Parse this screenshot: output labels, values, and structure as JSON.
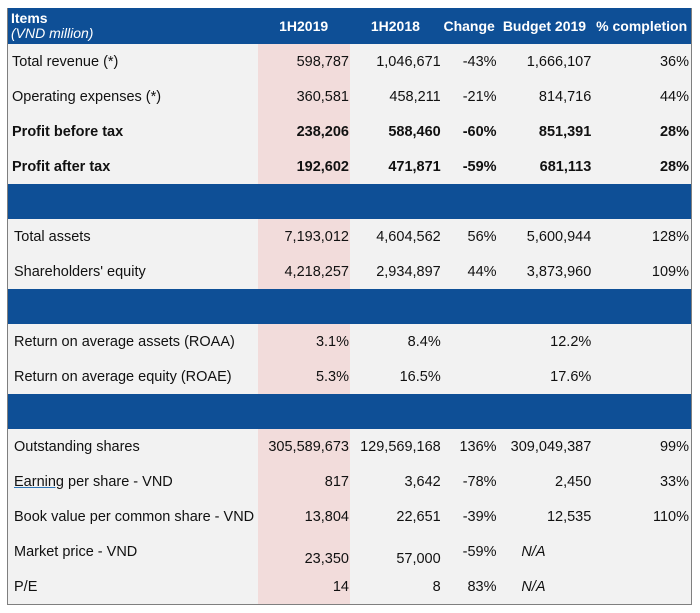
{
  "header": {
    "items_label": "Items",
    "unit_label": "(VND million)",
    "columns": [
      "1H2019",
      "1H2018",
      "Change",
      "Budget 2019",
      "% completion"
    ]
  },
  "colors": {
    "header_blue": "#0e4f96",
    "highlight_pink": "#f2dcdb",
    "row_grey": "#f2f2f2"
  },
  "sections": [
    {
      "rows": [
        {
          "label": "Total revenue (*)",
          "values": [
            "598,787",
            "1,046,671",
            "-43%",
            "1,666,107",
            "36%"
          ]
        },
        {
          "label": "Operating expenses (*)",
          "values": [
            "360,581",
            "458,211",
            "-21%",
            "814,716",
            "44%"
          ]
        },
        {
          "label": "Profit before tax",
          "bold": true,
          "values": [
            "238,206",
            "588,460",
            "-60%",
            "851,391",
            "28%"
          ]
        },
        {
          "label": "Profit after tax",
          "bold": true,
          "values": [
            "192,602",
            "471,871",
            "-59%",
            "681,113",
            "28%"
          ]
        }
      ]
    },
    {
      "rows": [
        {
          "label": "Total assets",
          "values": [
            "7,193,012",
            "4,604,562",
            "56%",
            "5,600,944",
            "128%"
          ]
        },
        {
          "label": "Shareholders' equity",
          "values": [
            "4,218,257",
            "2,934,897",
            "44%",
            "3,873,960",
            "109%"
          ]
        }
      ]
    },
    {
      "rows": [
        {
          "label": "Return on average assets (ROAA)",
          "values": [
            "3.1%",
            "8.4%",
            "",
            "12.2%",
            ""
          ]
        },
        {
          "label": "Return on average equity (ROAE)",
          "values": [
            "5.3%",
            "16.5%",
            "",
            "17.6%",
            ""
          ]
        }
      ]
    },
    {
      "rows": [
        {
          "label": "Outstanding shares",
          "values": [
            "305,589,673",
            "129,569,168",
            "136%",
            "309,049,387",
            "99%"
          ]
        },
        {
          "label": "Earning per share  - VND",
          "underline_word": "Earning",
          "values": [
            "817",
            "3,642",
            "-78%",
            "2,450",
            "33%"
          ]
        },
        {
          "label": "Book value per common share - VND",
          "values": [
            "13,804",
            "22,651",
            "-39%",
            "12,535",
            "110%"
          ]
        },
        {
          "label": "Market price - VND",
          "low": true,
          "values": [
            "23,350",
            "57,000",
            "-59%",
            "N/A",
            ""
          ]
        },
        {
          "label": "P/E",
          "values": [
            "14",
            "8",
            "83%",
            "N/A",
            ""
          ]
        }
      ]
    }
  ]
}
